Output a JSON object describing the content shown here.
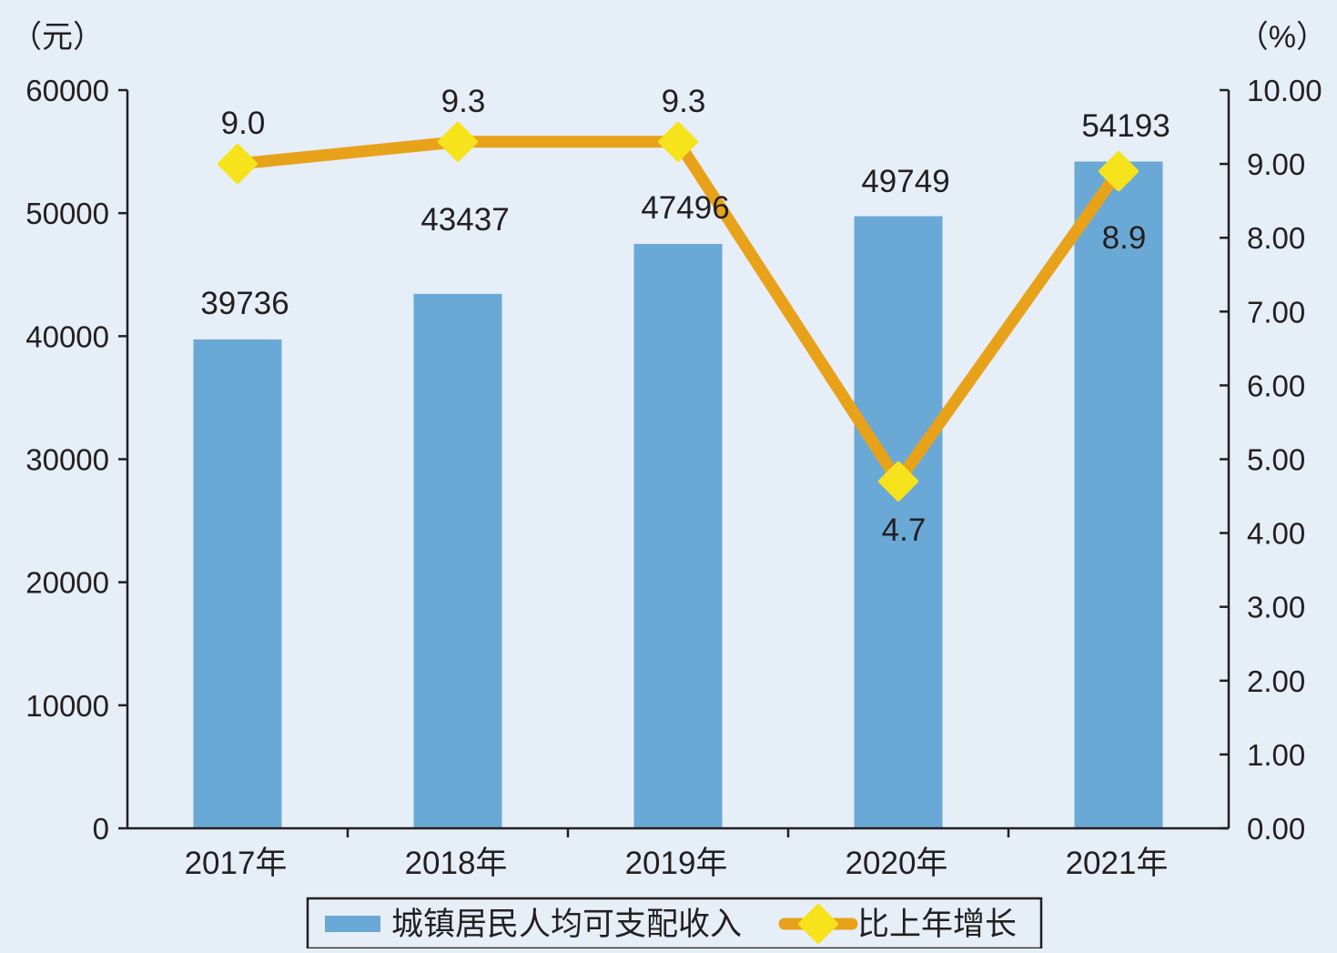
{
  "chart_data": {
    "type": "bar",
    "categories": [
      "2017年",
      "2018年",
      "2019年",
      "2020年",
      "2021年"
    ],
    "series": [
      {
        "name": "城镇居民人均可支配收入",
        "type": "bar",
        "axis": "left",
        "values": [
          39736,
          43437,
          47496,
          49749,
          54193
        ],
        "color": "#6aa9d6"
      },
      {
        "name": "比上年增长",
        "type": "line",
        "axis": "right",
        "values": [
          9.0,
          9.3,
          9.3,
          4.7,
          8.9
        ],
        "labels": [
          "9.0",
          "9.3",
          "9.3",
          "4.7",
          "8.9"
        ],
        "color": "#e8a21a",
        "marker_color": "#f7e31c"
      }
    ],
    "left_axis": {
      "unit": "（元）",
      "ylim": [
        0,
        60000
      ],
      "ticks": [
        "0",
        "10000",
        "20000",
        "30000",
        "40000",
        "50000",
        "60000"
      ]
    },
    "right_axis": {
      "unit": "（%）",
      "ylim": [
        0,
        10
      ],
      "ticks": [
        "0.00",
        "1.00",
        "2.00",
        "3.00",
        "4.00",
        "5.00",
        "6.00",
        "7.00",
        "8.00",
        "9.00",
        "10.00"
      ]
    },
    "legend": {
      "position": "bottom-center",
      "entries": [
        "城镇居民人均可支配收入",
        "比上年增长"
      ]
    },
    "grid": false
  }
}
